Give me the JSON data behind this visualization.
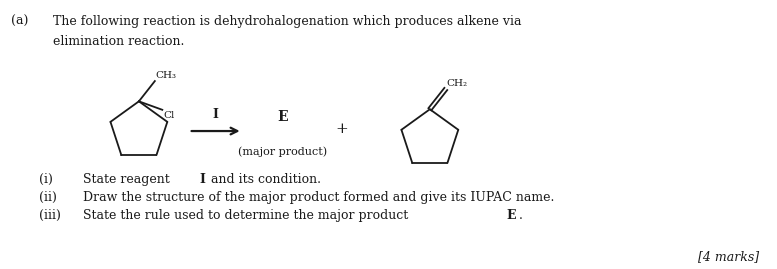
{
  "title_label": "(a)",
  "intro_line1": "The following reaction is dehydrohalogenation which produces alkene via",
  "intro_line2": "elimination reaction.",
  "reagent_label": "I",
  "product_label": "E",
  "product_sublabel": "(major product)",
  "plus_sign": "+",
  "marks_label": "[4 marks]",
  "bg_color": "#ffffff",
  "text_color": "#1a1a1a",
  "figsize": [
    7.77,
    2.69
  ],
  "dpi": 100,
  "q_roman": [
    "(i)",
    "(ii)",
    "(iii)"
  ],
  "q_text_plain": [
    "State reagent ",
    "Draw the structure of the major product formed and give its IUPAC name.",
    "State the rule used to determine the major product "
  ],
  "q_bold": [
    "I",
    "",
    "E"
  ],
  "q_text_after": [
    " and its condition.",
    "",
    "."
  ]
}
